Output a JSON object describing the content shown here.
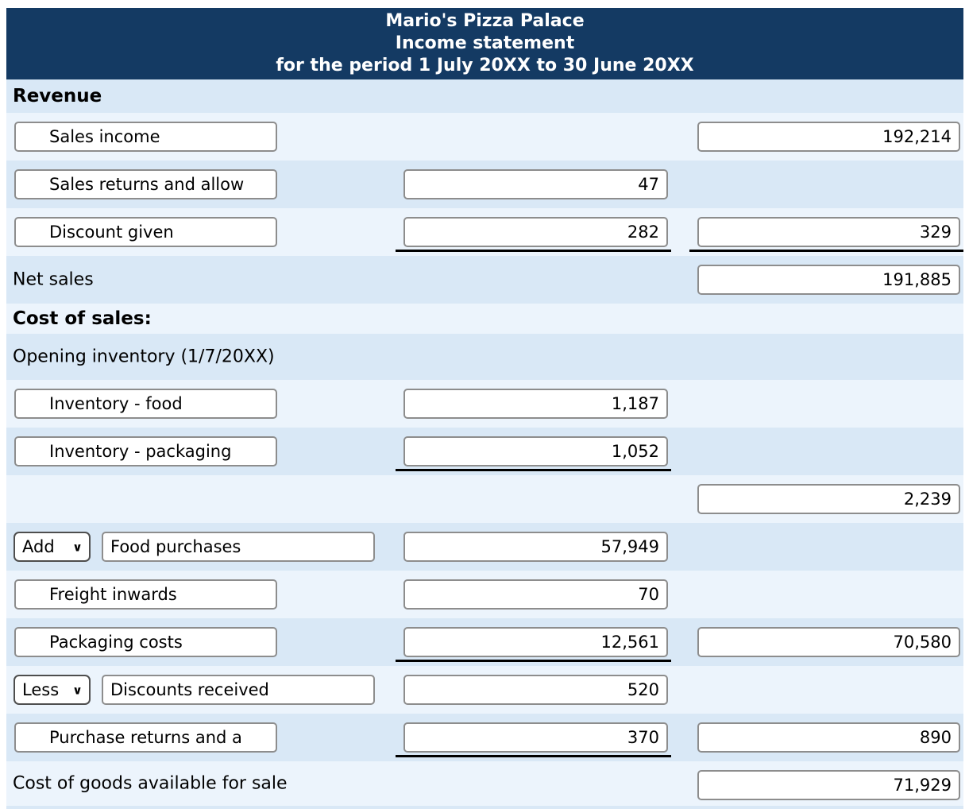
{
  "header": {
    "line1": "Mario's Pizza Palace",
    "line2": "Income statement",
    "line3": "for the period 1 July 20XX to 30 June 20XX"
  },
  "icons": {
    "dropdown_chevron": "∨"
  },
  "rows": {
    "revenue_heading": "Revenue",
    "sales_income": {
      "label": "Sales income",
      "right": "192,214"
    },
    "sales_returns": {
      "label": "Sales returns and allow",
      "mid": "47"
    },
    "discount_given": {
      "label": "Discount given",
      "mid": "282",
      "right": "329"
    },
    "net_sales": {
      "label": "Net sales",
      "right": "191,885"
    },
    "cost_of_sales_heading": "Cost of sales:",
    "opening_inventory": {
      "label": "Opening inventory (1/7/20XX)"
    },
    "inventory_food": {
      "label": "Inventory - food",
      "mid": "1,187"
    },
    "inventory_packaging": {
      "label": "Inventory - packaging",
      "mid": "1,052"
    },
    "opening_inventory_total": {
      "right": "2,239"
    },
    "food_purchases": {
      "select": "Add",
      "colon": ":",
      "label": "Food purchases",
      "mid": "57,949"
    },
    "freight_inwards": {
      "label": "Freight inwards",
      "mid": "70"
    },
    "packaging_costs": {
      "label": "Packaging costs",
      "mid": "12,561",
      "right": "70,580"
    },
    "discounts_received": {
      "select": "Less",
      "colon": ":",
      "label": "Discounts received",
      "mid": "520"
    },
    "purchase_returns": {
      "label": "Purchase returns and a",
      "mid": "370",
      "right": "890"
    },
    "cogs_available": {
      "label": "Cost of goods available for sale",
      "right": "71,929"
    }
  }
}
